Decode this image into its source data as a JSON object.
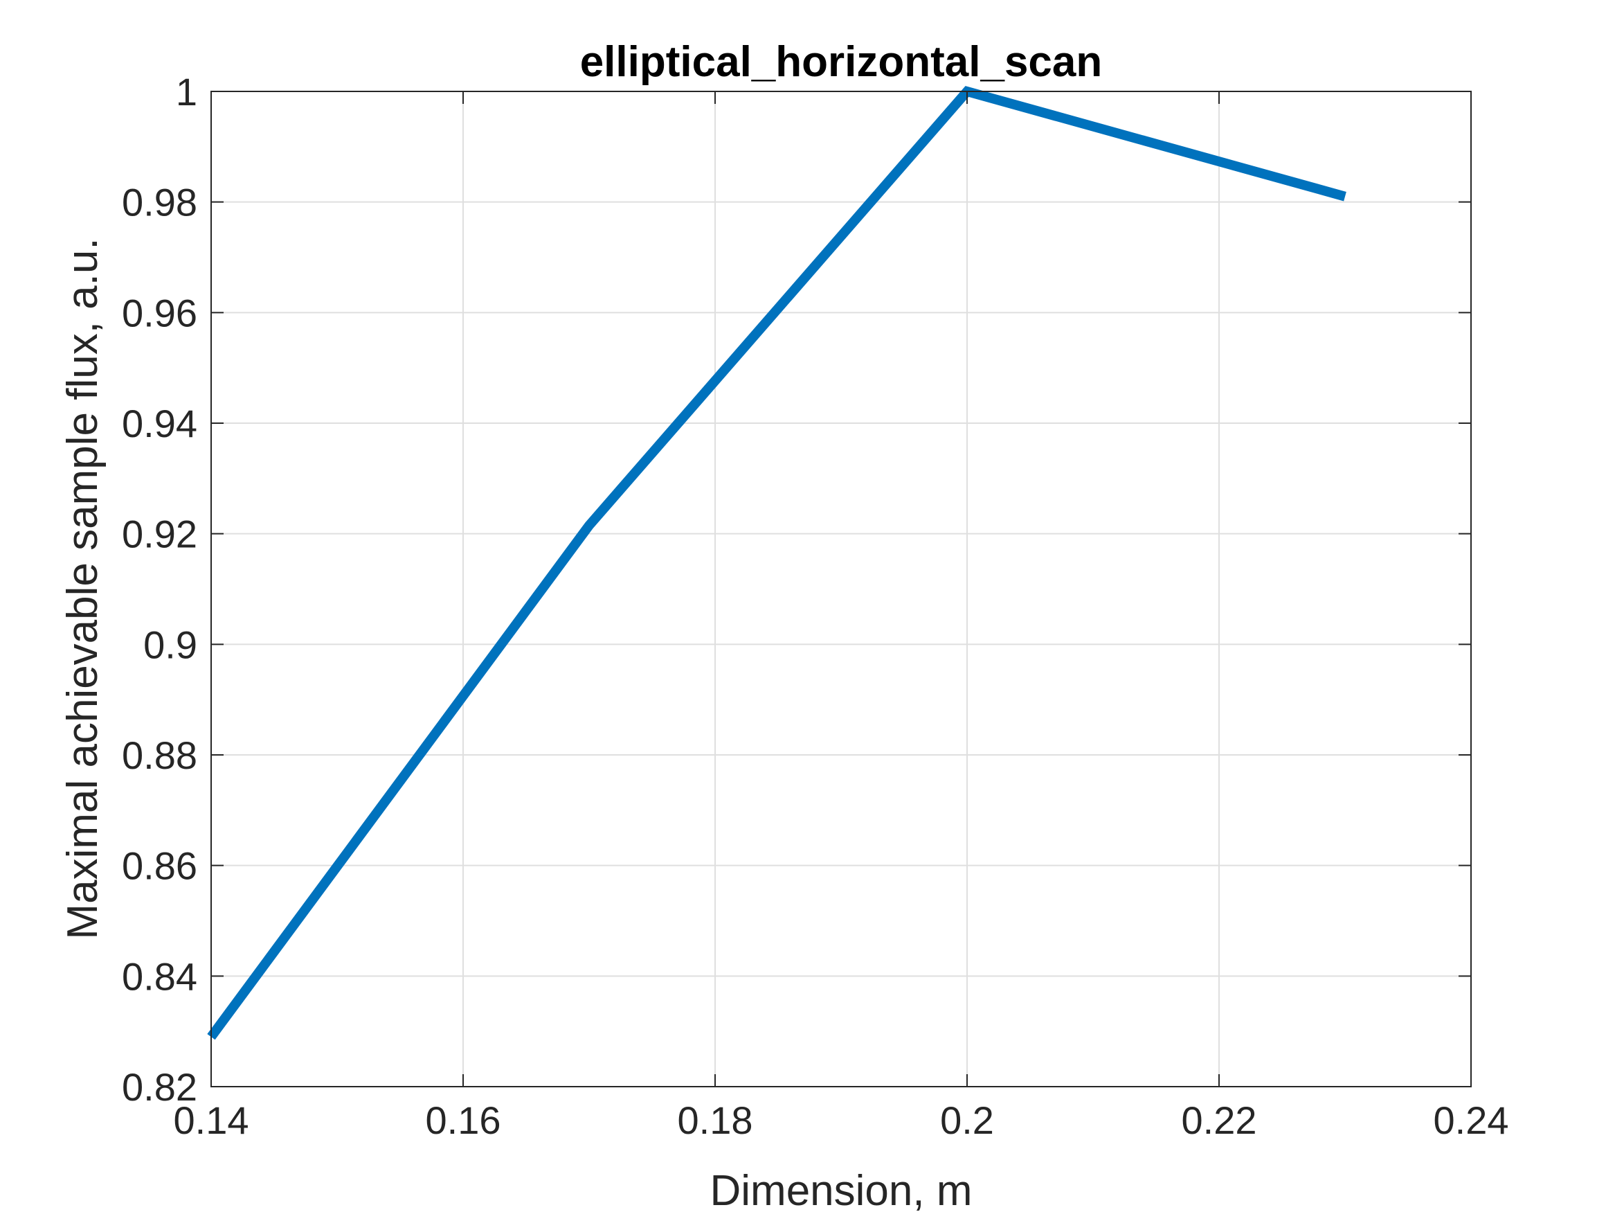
{
  "chart_data": {
    "type": "line",
    "title": "elliptical_horizontal_scan",
    "xlabel": "Dimension, m",
    "ylabel": "Maximal achievable sample flux, a.u.",
    "xlim": [
      0.14,
      0.24
    ],
    "ylim": [
      0.82,
      1.0
    ],
    "x_ticks": [
      "0.14",
      "0.16",
      "0.18",
      "0.2",
      "0.22",
      "0.24"
    ],
    "y_ticks": [
      "0.82",
      "0.84",
      "0.86",
      "0.88",
      "0.9",
      "0.92",
      "0.94",
      "0.96",
      "0.98",
      "1"
    ],
    "grid": true,
    "series": [
      {
        "color": "#0072BD",
        "x": [
          0.14,
          0.17,
          0.2,
          0.23
        ],
        "y": [
          0.829,
          0.9215,
          1.0,
          0.981
        ]
      }
    ]
  }
}
